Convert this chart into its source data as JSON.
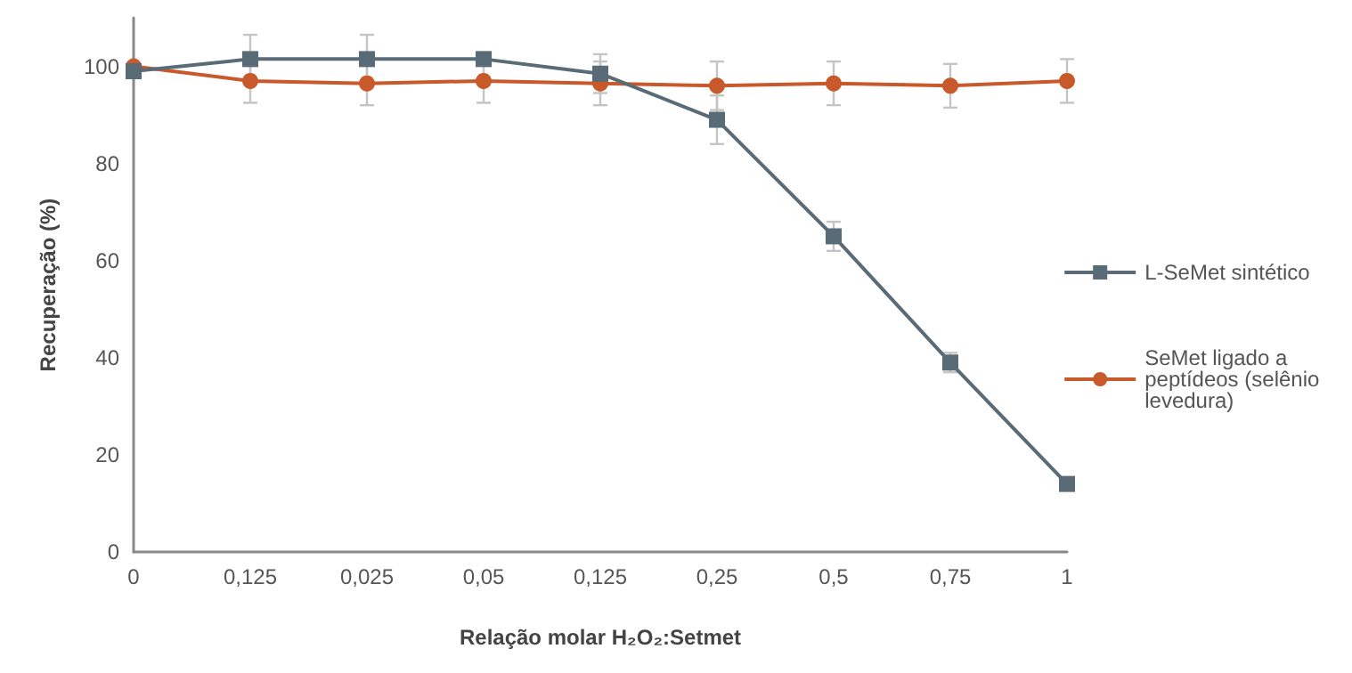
{
  "chart_data": {
    "type": "line",
    "xlabel": "Relação molar H₂O₂:Setmet",
    "ylabel": "Recuperação (%)",
    "categories": [
      "0",
      "0,125",
      "0,025",
      "0,05",
      "0,125",
      "0,25",
      "0,5",
      "0,75",
      "1"
    ],
    "series": [
      {
        "name": "L-SeMet sintético",
        "color": "#5a6b78",
        "marker": "square",
        "values": [
          99,
          101.5,
          101.5,
          101.5,
          98.5,
          89,
          65,
          39,
          14
        ],
        "errors": [
          null,
          5,
          5,
          null,
          4,
          5,
          3,
          2,
          null
        ]
      },
      {
        "name": "SeMet ligado a peptídeos (selênio levedura)",
        "color": "#c8592a",
        "marker": "circle",
        "values": [
          100,
          97,
          96.5,
          97,
          96.5,
          96,
          96.5,
          96,
          97
        ],
        "errors": [
          null,
          4.5,
          4.5,
          4.5,
          4.5,
          5,
          4.5,
          4.5,
          4.5
        ]
      }
    ],
    "ylim": [
      0,
      110
    ],
    "yticks": [
      0,
      20,
      40,
      60,
      80,
      100
    ],
    "grid": false,
    "legend": "right",
    "line_style": "solid"
  }
}
